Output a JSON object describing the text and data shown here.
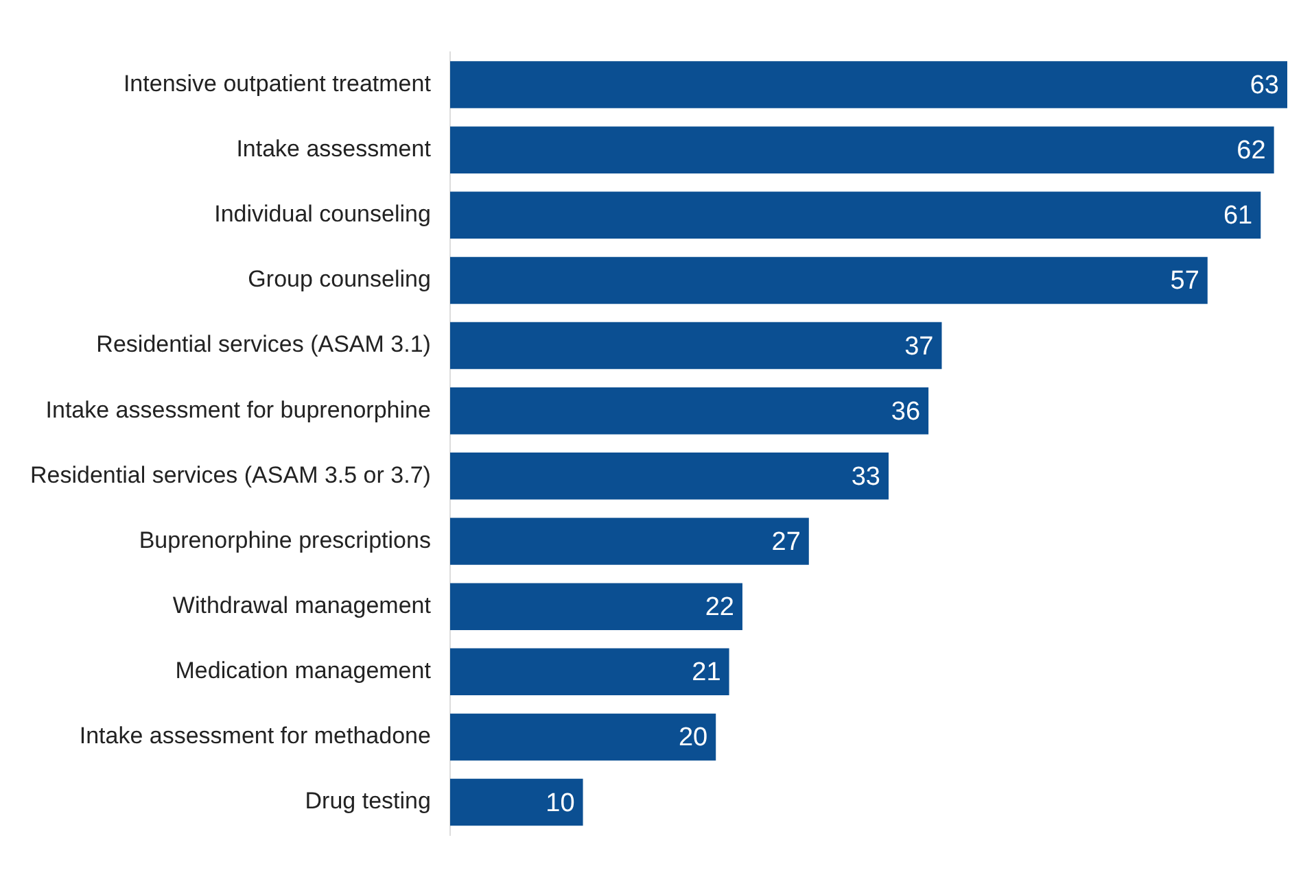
{
  "chart_data": {
    "type": "bar",
    "orientation": "horizontal",
    "categories": [
      "Intensive outpatient treatment",
      "Intake assessment",
      "Individual counseling",
      "Group counseling",
      "Residential services (ASAM 3.1)",
      "Intake assessment for buprenorphine",
      "Residential services (ASAM 3.5 or 3.7)",
      "Buprenorphine prescriptions",
      "Withdrawal management",
      "Medication management",
      "Intake assessment for methadone",
      "Drug testing"
    ],
    "values": [
      63,
      62,
      61,
      57,
      37,
      36,
      33,
      27,
      22,
      21,
      20,
      10
    ],
    "color": "#0b4f92",
    "data_labels": true,
    "legend": false
  }
}
